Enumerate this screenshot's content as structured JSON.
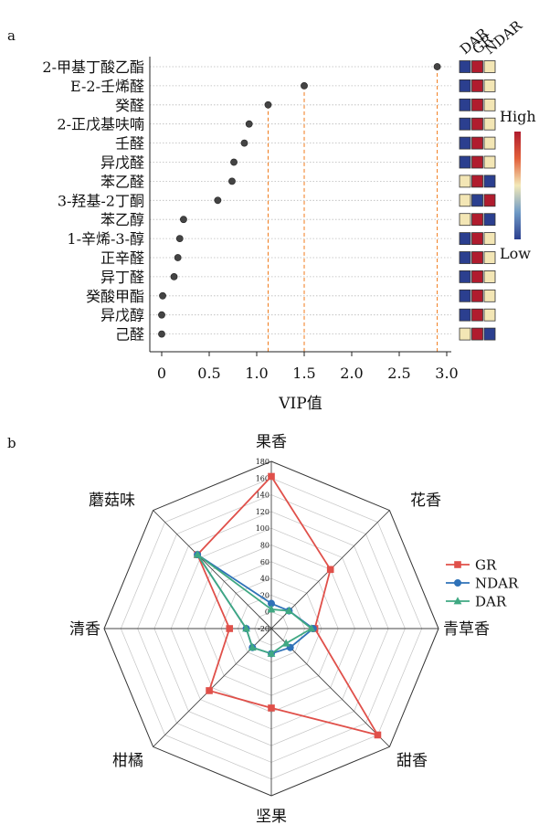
{
  "panel_labels": {
    "a": "a",
    "b": "b"
  },
  "chart_data": [
    {
      "type": "scatter",
      "subtype": "lollipop",
      "panel": "a",
      "xlabel": "VIP值",
      "ylabel": "",
      "xlim": [
        -0.15,
        3.05
      ],
      "xticks": [
        "0",
        "0.5",
        "1.0",
        "1.5",
        "2.0",
        "2.5",
        "3.0"
      ],
      "xtick_values": [
        0,
        0.5,
        1.0,
        1.5,
        2.0,
        2.5,
        3.0
      ],
      "categories": [
        "2-甲基丁酸乙酯",
        "E-2-壬烯醛",
        "癸醛",
        "2-正戊基呋喃",
        "壬醛",
        "异戊醛",
        "苯乙醛",
        "3-羟基-2丁酮",
        "苯乙醇",
        "1-辛烯-3-醇",
        "正辛醛",
        "异丁醛",
        "癸酸甲酯",
        "异戊醇",
        "己醛"
      ],
      "values": [
        2.9,
        1.5,
        1.12,
        0.92,
        0.87,
        0.76,
        0.74,
        0.59,
        0.23,
        0.19,
        0.17,
        0.13,
        0.01,
        0.0,
        0.0
      ],
      "highlight_threshold": 1.0,
      "point_color": "#444444",
      "guide_color": "#f07a1a",
      "heatmap": {
        "columns": [
          "DAR",
          "GR",
          "NDAR"
        ],
        "legend_high": "High",
        "legend_low": "Low",
        "colors": {
          "high": "#b01c2e",
          "mid": "#f3e6b5",
          "low": "#2b3f8f"
        },
        "levels": [
          [
            -1,
            1,
            0
          ],
          [
            -1,
            1,
            0
          ],
          [
            -1,
            1,
            0
          ],
          [
            -1,
            1,
            0
          ],
          [
            -1,
            1,
            0
          ],
          [
            -1,
            1,
            0
          ],
          [
            0,
            1,
            -1
          ],
          [
            0,
            -1,
            1
          ],
          [
            0,
            1,
            -1
          ],
          [
            -1,
            1,
            0
          ],
          [
            -1,
            1,
            0
          ],
          [
            -1,
            1,
            0
          ],
          [
            -1,
            1,
            0
          ],
          [
            -1,
            1,
            0
          ],
          [
            0,
            1,
            -1
          ]
        ]
      }
    },
    {
      "type": "radar",
      "panel": "b",
      "axes": [
        "果香",
        "花香",
        "青草香",
        "甜香",
        "坚果",
        "柑橘",
        "清香",
        "蘑菇味"
      ],
      "rlim": [
        -20,
        180
      ],
      "rticks": [
        -20,
        0,
        20,
        40,
        60,
        80,
        100,
        120,
        140,
        160,
        180
      ],
      "rtick_labels": [
        "-20",
        "0",
        "20",
        "40",
        "60",
        "80",
        "100",
        "120",
        "140",
        "160",
        "180"
      ],
      "series": [
        {
          "name": "GR",
          "color": "#e0504a",
          "marker": "square",
          "values": [
            162,
            80,
            32,
            160,
            75,
            85,
            30,
            105
          ]
        },
        {
          "name": "NDAR",
          "color": "#2f72b8",
          "marker": "circle",
          "values": [
            10,
            10,
            30,
            12,
            10,
            12,
            10,
            105
          ]
        },
        {
          "name": "DAR",
          "color": "#3fa882",
          "marker": "triangle",
          "values": [
            3,
            10,
            28,
            5,
            10,
            12,
            10,
            105
          ]
        }
      ],
      "legend_position": "right"
    }
  ]
}
